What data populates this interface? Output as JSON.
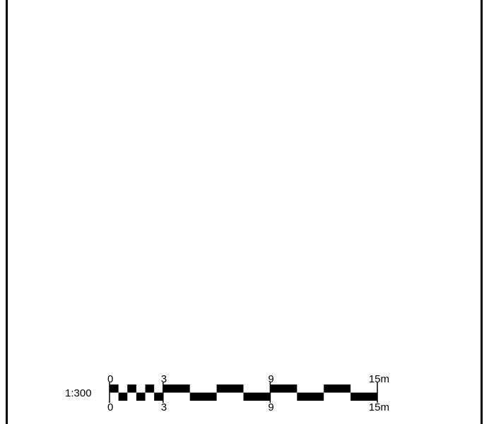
{
  "scale_bar": {
    "ratio": "1:300",
    "top_labels": [
      {
        "value": 0,
        "text": "0"
      },
      {
        "value": 3,
        "text": "3"
      },
      {
        "value": 9,
        "text": "9"
      },
      {
        "value": 15,
        "text": "15m"
      }
    ],
    "bottom_labels": [
      {
        "value": 0,
        "text": "0"
      },
      {
        "value": 3,
        "text": "3"
      },
      {
        "value": 9,
        "text": "9"
      },
      {
        "value": 15,
        "text": "15m"
      }
    ],
    "max_value": 15,
    "fine_divisions_end": 3,
    "fine_step": 0.5,
    "coarse_step": 1.5,
    "color": "#000000"
  }
}
